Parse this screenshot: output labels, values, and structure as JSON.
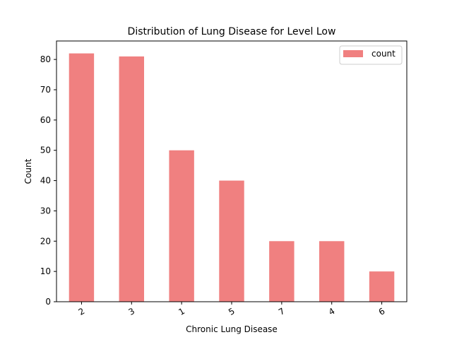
{
  "chart_data": {
    "type": "bar",
    "title": "Distribution of Lung Disease for Level Low",
    "xlabel": "Chronic Lung Disease",
    "ylabel": "Count",
    "categories": [
      "2",
      "3",
      "1",
      "5",
      "7",
      "4",
      "6"
    ],
    "series": [
      {
        "name": "count",
        "values": [
          82,
          81,
          50,
          40,
          20,
          20,
          10
        ]
      }
    ],
    "ylim": [
      0,
      86.1
    ],
    "yticks": [
      0,
      10,
      20,
      30,
      40,
      50,
      60,
      70,
      80
    ],
    "xtick_rotation": "rotated about 30 degrees",
    "grid": false,
    "legend_position": "top-right",
    "bar_color": "#f08080"
  }
}
